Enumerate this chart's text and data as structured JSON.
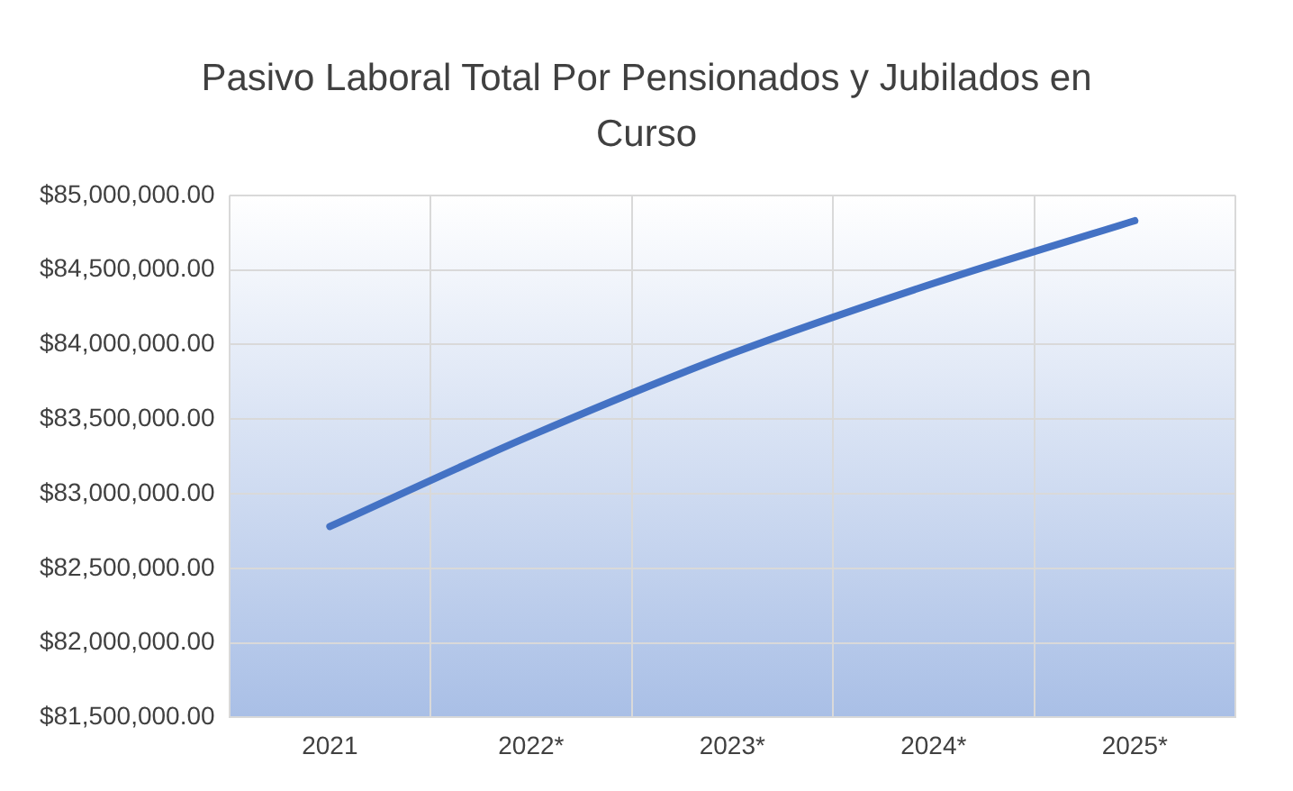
{
  "chart_data": {
    "type": "line",
    "title": "Pasivo Laboral Total Por Pensionados y Jubilados en Curso",
    "categories": [
      "2021",
      "2022*",
      "2023*",
      "2024*",
      "2025*"
    ],
    "series": [
      {
        "color": "#4472c4",
        "values": [
          82780000,
          83390000,
          83940000,
          84410000,
          84830000
        ]
      }
    ],
    "ylim": [
      81500000,
      85000000
    ],
    "yticks": [
      {
        "value": 81500000,
        "label": "$81,500,000.00"
      },
      {
        "value": 82000000,
        "label": "$82,000,000.00"
      },
      {
        "value": 82500000,
        "label": "$82,500,000.00"
      },
      {
        "value": 83000000,
        "label": "$83,000,000.00"
      },
      {
        "value": 83500000,
        "label": "$83,500,000.00"
      },
      {
        "value": 84000000,
        "label": "$84,000,000.00"
      },
      {
        "value": 84500000,
        "label": "$84,500,000.00"
      },
      {
        "value": 85000000,
        "label": "$85,000,000.00"
      }
    ],
    "grid": true,
    "legend": false,
    "marker": "none",
    "line_style": "solid"
  }
}
